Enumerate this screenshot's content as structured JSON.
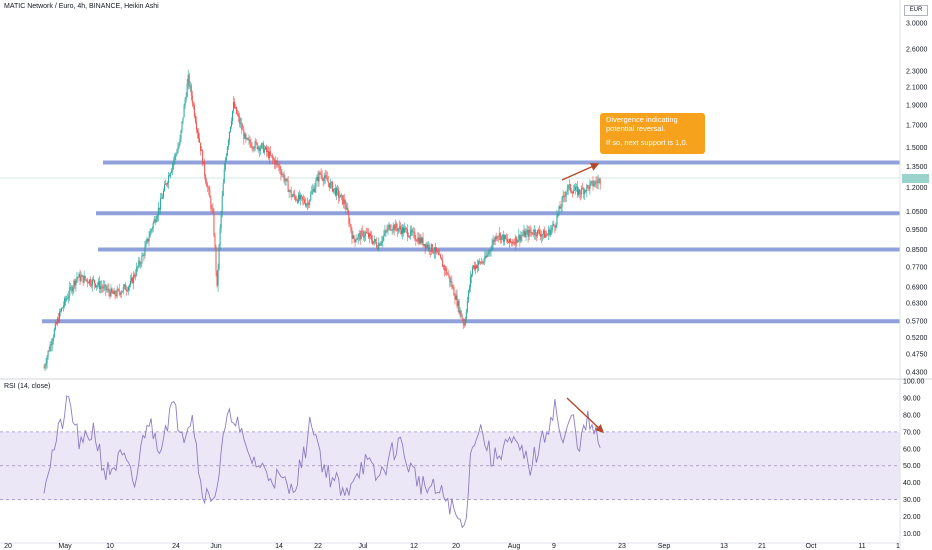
{
  "header": {
    "title": "MATIC Network / Euro, 4h, BINANCE, Heikin Ashi"
  },
  "currency": "EUR",
  "last_price_label": "",
  "annotation": {
    "line1": "Divergence indicating",
    "line2": "potential reversal.",
    "line3": "If so, next support is 1,0."
  },
  "colors": {
    "up": "#26a69a",
    "down": "#ef5350",
    "level": "#7b8fd3",
    "rsi": "#8e7cc3",
    "rsi_band": "#ece7f7",
    "arrow": "#b5482a",
    "note": "#f7a21d"
  },
  "chart_data": [
    {
      "type": "candlestick",
      "title": "MATIC Network / Euro, 4h, BINANCE, Heikin Ashi",
      "scale": "log",
      "ylim": [
        0.42,
        3.3
      ],
      "x_ticks": [
        "20",
        "May",
        "10",
        "24",
        "Jun",
        "14",
        "22",
        "Jul",
        "12",
        "20",
        "Aug",
        "9",
        "23",
        "Sep",
        "13",
        "21",
        "Oct",
        "11",
        "1"
      ],
      "y_ticks": [
        0.43,
        0.475,
        0.52,
        0.57,
        0.63,
        0.69,
        0.77,
        0.85,
        0.95,
        1.05,
        1.2,
        1.35,
        1.5,
        1.7,
        1.9,
        2.1,
        2.3,
        2.6,
        3.0
      ],
      "y_tick_labels": [
        "0.4300",
        "0.4750",
        "0.5200",
        "0.5700",
        "0.6300",
        "0.6900",
        "0.7700",
        "0.8500",
        "0.9500",
        "1.0500",
        "1.2000",
        "1.3500",
        "1.5000",
        "1.7000",
        "1.9000",
        "2.1000",
        "2.3000",
        "2.6000",
        "3.0000"
      ],
      "support_resistance_levels": [
        1.38,
        1.04,
        0.85,
        0.57
      ],
      "price_path": [
        {
          "d": 0,
          "v": 0.44
        },
        {
          "d": 4,
          "v": 0.6
        },
        {
          "d": 8,
          "v": 0.73
        },
        {
          "d": 12,
          "v": 0.71
        },
        {
          "d": 17,
          "v": 0.66
        },
        {
          "d": 21,
          "v": 0.7
        },
        {
          "d": 24,
          "v": 0.82
        },
        {
          "d": 28,
          "v": 1.08
        },
        {
          "d": 31,
          "v": 1.35
        },
        {
          "d": 33,
          "v": 1.55
        },
        {
          "d": 35,
          "v": 2.2
        },
        {
          "d": 37,
          "v": 1.7
        },
        {
          "d": 39,
          "v": 1.3
        },
        {
          "d": 41,
          "v": 1.02
        },
        {
          "d": 42,
          "v": 0.68
        },
        {
          "d": 44,
          "v": 1.4
        },
        {
          "d": 46,
          "v": 1.9
        },
        {
          "d": 49,
          "v": 1.55
        },
        {
          "d": 53,
          "v": 1.5
        },
        {
          "d": 57,
          "v": 1.35
        },
        {
          "d": 60,
          "v": 1.15
        },
        {
          "d": 64,
          "v": 1.1
        },
        {
          "d": 67,
          "v": 1.3
        },
        {
          "d": 70,
          "v": 1.2
        },
        {
          "d": 73,
          "v": 1.1
        },
        {
          "d": 75,
          "v": 0.9
        },
        {
          "d": 78,
          "v": 0.93
        },
        {
          "d": 81,
          "v": 0.87
        },
        {
          "d": 84,
          "v": 0.97
        },
        {
          "d": 88,
          "v": 0.94
        },
        {
          "d": 91,
          "v": 0.9
        },
        {
          "d": 95,
          "v": 0.84
        },
        {
          "d": 98,
          "v": 0.74
        },
        {
          "d": 101,
          "v": 0.6
        },
        {
          "d": 102,
          "v": 0.56
        },
        {
          "d": 104,
          "v": 0.77
        },
        {
          "d": 107,
          "v": 0.8
        },
        {
          "d": 110,
          "v": 0.93
        },
        {
          "d": 113,
          "v": 0.88
        },
        {
          "d": 116,
          "v": 0.92
        },
        {
          "d": 119,
          "v": 0.94
        },
        {
          "d": 122,
          "v": 0.92
        },
        {
          "d": 124,
          "v": 0.98
        },
        {
          "d": 127,
          "v": 1.2
        },
        {
          "d": 130,
          "v": 1.17
        },
        {
          "d": 133,
          "v": 1.22
        },
        {
          "d": 135,
          "v": 1.25
        }
      ]
    },
    {
      "type": "line",
      "title": "RSI (14, close)",
      "ylim": [
        5,
        100
      ],
      "y_ticks": [
        10,
        20,
        30,
        40,
        50,
        60,
        70,
        80,
        90,
        100
      ],
      "y_tick_labels": [
        "10.00",
        "20.00",
        "30.00",
        "40.00",
        "50.00",
        "60.00",
        "70.00",
        "80.00",
        "90.00",
        "100.00"
      ],
      "bands": {
        "upper": 70,
        "middle": 50,
        "lower": 30
      },
      "rsi_path": [
        {
          "d": 0,
          "v": 40
        },
        {
          "d": 3,
          "v": 65
        },
        {
          "d": 6,
          "v": 88
        },
        {
          "d": 9,
          "v": 60
        },
        {
          "d": 12,
          "v": 72
        },
        {
          "d": 15,
          "v": 45
        },
        {
          "d": 19,
          "v": 55
        },
        {
          "d": 22,
          "v": 38
        },
        {
          "d": 25,
          "v": 78
        },
        {
          "d": 28,
          "v": 62
        },
        {
          "d": 31,
          "v": 85
        },
        {
          "d": 34,
          "v": 70
        },
        {
          "d": 36,
          "v": 82
        },
        {
          "d": 38,
          "v": 40
        },
        {
          "d": 40,
          "v": 30
        },
        {
          "d": 42,
          "v": 38
        },
        {
          "d": 44,
          "v": 72
        },
        {
          "d": 46,
          "v": 82
        },
        {
          "d": 49,
          "v": 58
        },
        {
          "d": 53,
          "v": 48
        },
        {
          "d": 57,
          "v": 42
        },
        {
          "d": 60,
          "v": 35
        },
        {
          "d": 63,
          "v": 55
        },
        {
          "d": 65,
          "v": 78
        },
        {
          "d": 68,
          "v": 48
        },
        {
          "d": 71,
          "v": 40
        },
        {
          "d": 73,
          "v": 30
        },
        {
          "d": 75,
          "v": 45
        },
        {
          "d": 78,
          "v": 52
        },
        {
          "d": 81,
          "v": 42
        },
        {
          "d": 84,
          "v": 55
        },
        {
          "d": 86,
          "v": 65
        },
        {
          "d": 89,
          "v": 48
        },
        {
          "d": 92,
          "v": 38
        },
        {
          "d": 95,
          "v": 35
        },
        {
          "d": 98,
          "v": 30
        },
        {
          "d": 100,
          "v": 20
        },
        {
          "d": 102,
          "v": 12
        },
        {
          "d": 104,
          "v": 66
        },
        {
          "d": 106,
          "v": 72
        },
        {
          "d": 109,
          "v": 52
        },
        {
          "d": 112,
          "v": 64
        },
        {
          "d": 115,
          "v": 60
        },
        {
          "d": 118,
          "v": 50
        },
        {
          "d": 121,
          "v": 64
        },
        {
          "d": 124,
          "v": 86
        },
        {
          "d": 126,
          "v": 60
        },
        {
          "d": 128,
          "v": 80
        },
        {
          "d": 130,
          "v": 62
        },
        {
          "d": 132,
          "v": 76
        },
        {
          "d": 134,
          "v": 68
        },
        {
          "d": 135,
          "v": 60
        }
      ]
    }
  ]
}
